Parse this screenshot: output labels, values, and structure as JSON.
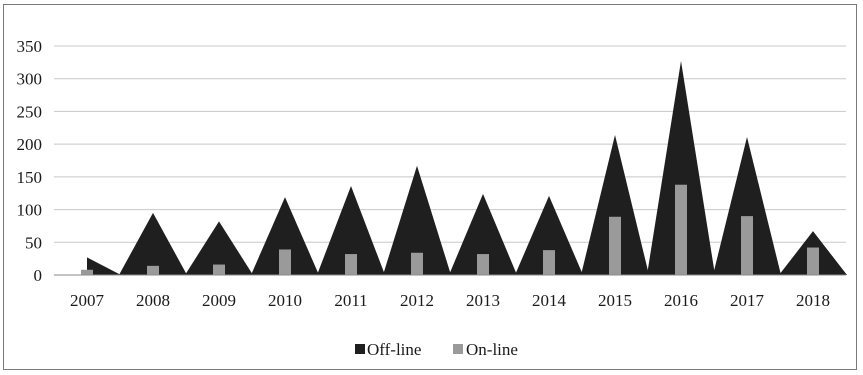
{
  "chart_data": {
    "type": "bar",
    "title": "",
    "xlabel": "",
    "ylabel": "",
    "categories": [
      "2007",
      "2008",
      "2009",
      "2010",
      "2011",
      "2012",
      "2013",
      "2014",
      "2015",
      "2016",
      "2017",
      "2018"
    ],
    "series": [
      {
        "name": "Off-line",
        "values": [
          27,
          95,
          82,
          119,
          136,
          167,
          124,
          121,
          214,
          327,
          211,
          67
        ]
      },
      {
        "name": "On-line",
        "values": [
          8,
          14,
          16,
          39,
          32,
          34,
          32,
          38,
          89,
          138,
          90,
          42
        ]
      }
    ],
    "ylim": [
      0,
      350
    ],
    "yticks": [
      0,
      50,
      100,
      150,
      200,
      250,
      300,
      350
    ],
    "grid": true,
    "legend_position": "bottom",
    "colors": {
      "off_line": "#1f1f1f",
      "on_line": "#9a9a9a",
      "grid": "#c8c8c8"
    }
  }
}
